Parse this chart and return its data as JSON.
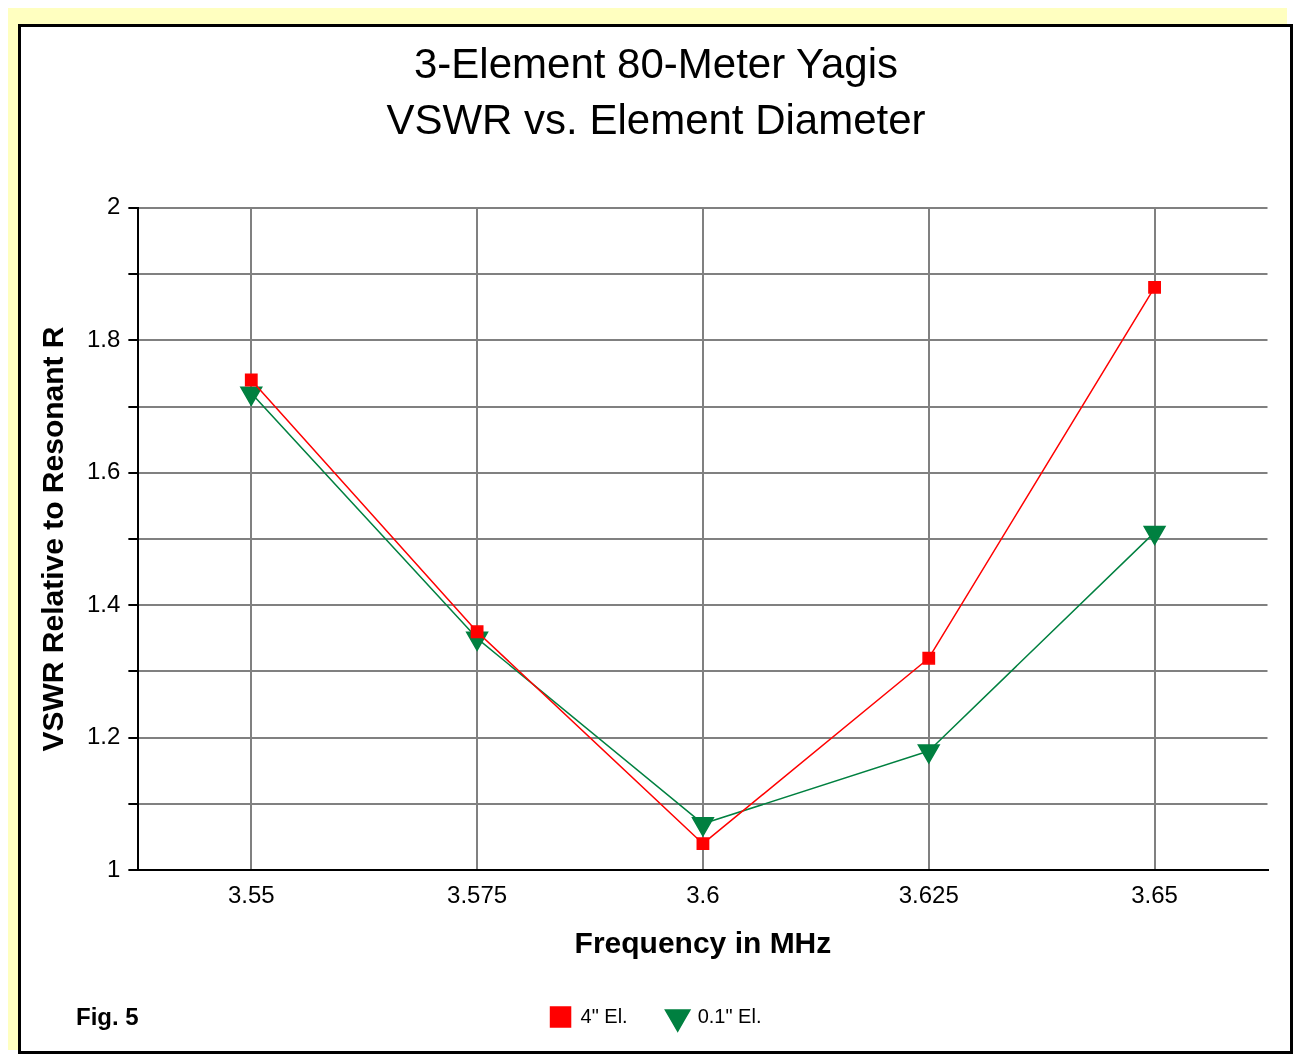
{
  "chart_data": {
    "type": "line",
    "title": "3-Element 80-Meter Yagis",
    "subtitle": "VSWR vs. Element Diameter",
    "xlabel": "Frequency in MHz",
    "ylabel": "VSWR Relative to Resonant R",
    "categories": [
      "3.55",
      "3.575",
      "3.6",
      "3.625",
      "3.65"
    ],
    "series": [
      {
        "name": "4\" El.",
        "color": "#ff0000",
        "marker": "square",
        "values": [
          1.74,
          1.36,
          1.04,
          1.32,
          1.88
        ]
      },
      {
        "name": "0.1\" El.",
        "color": "#008040",
        "marker": "triangle",
        "values": [
          1.72,
          1.35,
          1.07,
          1.18,
          1.51
        ]
      }
    ],
    "ylim": [
      1,
      2
    ],
    "yticks": [
      1,
      {
        "value": 1.1,
        "label": null
      },
      1.2,
      {
        "value": 1.3,
        "label": null
      },
      1.4,
      {
        "value": 1.5,
        "label": null
      },
      1.6,
      {
        "value": 1.7,
        "label": null
      },
      1.8,
      {
        "value": 1.9,
        "label": null
      },
      2
    ],
    "grid": true,
    "legend": "bottom",
    "annotations": [
      "Fig. 5"
    ]
  }
}
